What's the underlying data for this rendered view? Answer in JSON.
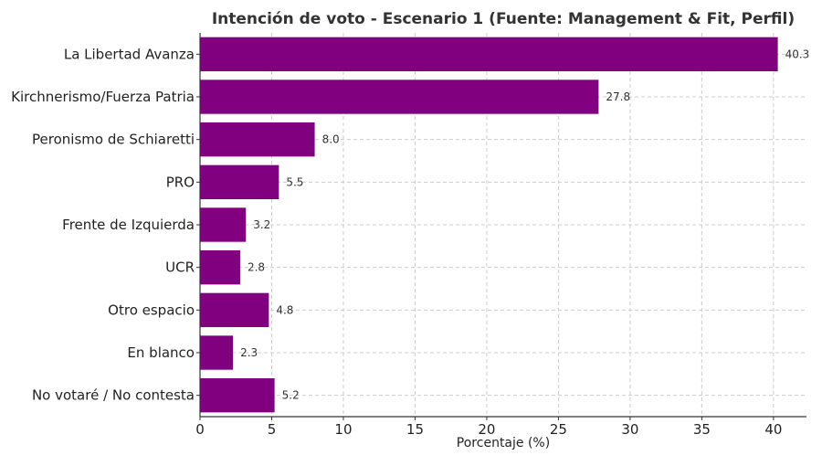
{
  "chart_data": {
    "type": "bar",
    "orientation": "horizontal",
    "title": "Intención de voto - Escenario 1 (Fuente: Management & Fit, Perfil)",
    "xlabel": "Porcentaje (%)",
    "ylabel": "",
    "categories": [
      "La Libertad Avanza",
      "Kirchnerismo/Fuerza Patria",
      "Peronismo de Schiaretti",
      "PRO",
      "Frente de Izquierda",
      "UCR",
      "Otro espacio",
      "En blanco",
      "No votaré / No contesta"
    ],
    "values": [
      40.3,
      27.8,
      8.0,
      5.5,
      3.2,
      2.8,
      4.8,
      2.3,
      5.2
    ],
    "data_labels": [
      "40.3",
      "27.8",
      "8.0",
      "5.5",
      "3.2",
      "2.8",
      "4.8",
      "2.3",
      "5.2"
    ],
    "xlim": [
      0,
      42.3
    ],
    "xticks": [
      0,
      5,
      10,
      15,
      20,
      25,
      30,
      35,
      40
    ],
    "grid": true,
    "bar_color": "#800080"
  }
}
